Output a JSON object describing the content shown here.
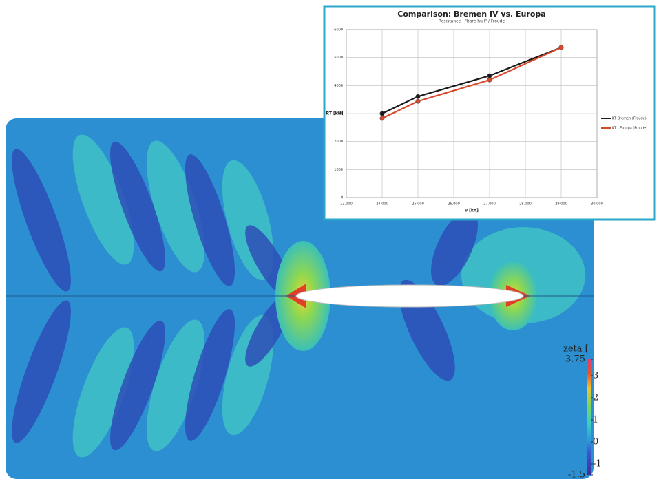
{
  "chart_data": [
    {
      "type": "line",
      "title": "Comparison: Bremen IV vs. Europa",
      "subtitle": "Resistance - \"bare hull\" / Froude",
      "x_label": "v [kn]",
      "y_label": "RT [kN]",
      "x": [
        24,
        25,
        27,
        29
      ],
      "series": [
        {
          "name": "RT Bremen (Froude)",
          "color": "#1a1a1a",
          "values": [
            3000,
            3610,
            4350,
            5360
          ]
        },
        {
          "name": "RT - Europa (Froude)",
          "color": "#d9482b",
          "values": [
            2830,
            3440,
            4200,
            5360
          ]
        }
      ],
      "xlim": [
        23,
        30
      ],
      "xticks": [
        {
          "value": 23,
          "label": "23.000"
        },
        {
          "value": 24,
          "label": "24.000"
        },
        {
          "value": 25,
          "label": "25.000"
        },
        {
          "value": 26,
          "label": "26.000"
        },
        {
          "value": 27,
          "label": "27.000"
        },
        {
          "value": 28,
          "label": "28.000"
        },
        {
          "value": 29,
          "label": "29.000"
        },
        {
          "value": 30,
          "label": "30.000"
        }
      ],
      "ylim": [
        0,
        6000
      ],
      "yticks": [
        0,
        1000,
        2000,
        3000,
        4000,
        5000,
        6000
      ],
      "grid": true,
      "legend": "right"
    },
    {
      "type": "contour",
      "colorbar_label": "zeta [",
      "colorbar_lim": [
        -1.5,
        3.75
      ],
      "colorbar_ticks": [
        3.75,
        3,
        2,
        1,
        0,
        -1,
        -1.5
      ]
    }
  ]
}
